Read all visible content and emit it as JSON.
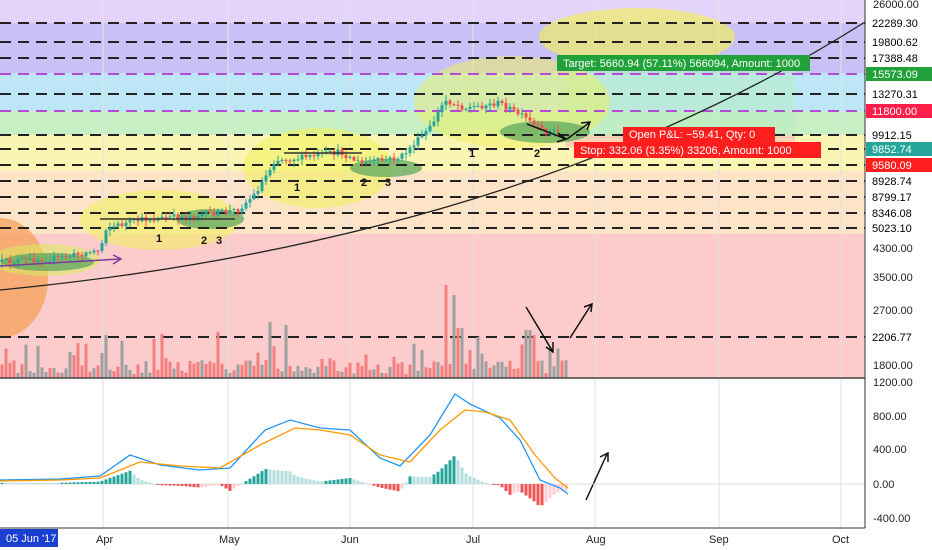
{
  "chart_data": {
    "type": "candlestick",
    "price_axis_ticks": [
      "26000.00",
      "4300.00",
      "3500.00",
      "2700.00",
      "1800.00"
    ],
    "price_levels": [
      {
        "label": "22289.30",
        "bg": "#ffffff",
        "fg": "#000000"
      },
      {
        "label": "19800.62",
        "bg": "#ffffff",
        "fg": "#000000"
      },
      {
        "label": "17388.48",
        "bg": "#ffffff",
        "fg": "#000000"
      },
      {
        "label": "15573.09",
        "bg": "#21a13a",
        "fg": "#ffffff"
      },
      {
        "label": "13270.31",
        "bg": "#ffffff",
        "fg": "#000000"
      },
      {
        "label": "11800.00",
        "bg": "#ff1e4a",
        "fg": "#ffffff"
      },
      {
        "label": "9912.15",
        "bg": "#ffffff",
        "fg": "#000000"
      },
      {
        "label": "9852.74",
        "bg": "#26a69a",
        "fg": "#ffffff"
      },
      {
        "label": "9580.09",
        "bg": "#ff1e1e",
        "fg": "#ffffff"
      },
      {
        "label": "8928.74",
        "bg": "#ffffff",
        "fg": "#000000"
      },
      {
        "label": "8799.17",
        "bg": "#ffffff",
        "fg": "#000000"
      },
      {
        "label": "8346.08",
        "bg": "#ffffff",
        "fg": "#000000"
      },
      {
        "label": "5023.10",
        "bg": "#ffffff",
        "fg": "#000000"
      },
      {
        "label": "2206.77",
        "bg": "#ffffff",
        "fg": "#000000"
      }
    ],
    "macd_axis_ticks": [
      "1200.00",
      "800.00",
      "400.00",
      "0.00",
      "-400.00"
    ],
    "x_ticks": [
      "Apr",
      "May",
      "Jun",
      "Jul",
      "Aug",
      "Sep",
      "Oct"
    ],
    "current_date": "05 Jun '17",
    "wave_labels": [
      "1",
      "2",
      "3",
      "1",
      "2",
      "3",
      "1",
      "2"
    ],
    "position": {
      "target": "Target: 5660.94 (57.11%) 566094, Amount: 1000",
      "open_pnl": "Open P&L: −59.41, Qty: 0",
      "stop": "Stop: 332.06 (3.35%) 33206, Amount: 1000"
    },
    "colors": {
      "up": "#26a69a",
      "down": "#ef5350",
      "macd": "#2196f3",
      "signal": "#ff9800"
    }
  }
}
